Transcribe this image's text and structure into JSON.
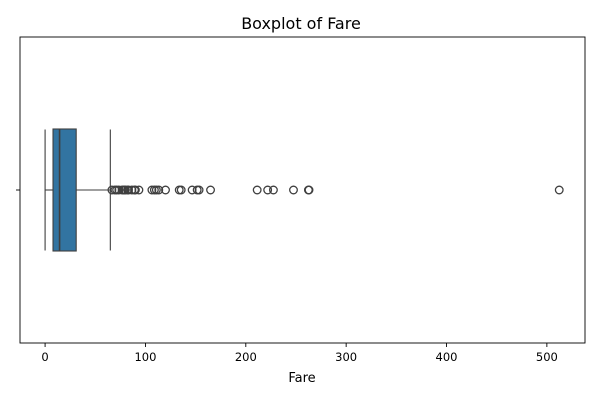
{
  "chart_data": {
    "type": "boxplot",
    "orientation": "horizontal",
    "title": "Boxplot of Fare",
    "xlabel": "Fare",
    "ylabel": "",
    "xlim": [
      -25,
      538
    ],
    "xticks": [
      0,
      100,
      200,
      300,
      400,
      500
    ],
    "grid": false,
    "box_color": "#3274a1",
    "line_color": "#3f3f3f",
    "stats": {
      "whisker_low": 0,
      "q1": 7.9,
      "median": 14.45,
      "q3": 31.0,
      "whisker_high": 65.0
    },
    "outliers": [
      66.6,
      69.55,
      71.28,
      73.5,
      76.73,
      77.96,
      79.2,
      80.0,
      82.17,
      83.16,
      86.5,
      89.1,
      90.0,
      93.5,
      106.43,
      108.9,
      110.88,
      113.28,
      120.0,
      133.65,
      135.63,
      146.52,
      151.55,
      153.46,
      164.87,
      211.34,
      221.78,
      227.53,
      247.52,
      262.38,
      263.0,
      512.33
    ]
  }
}
